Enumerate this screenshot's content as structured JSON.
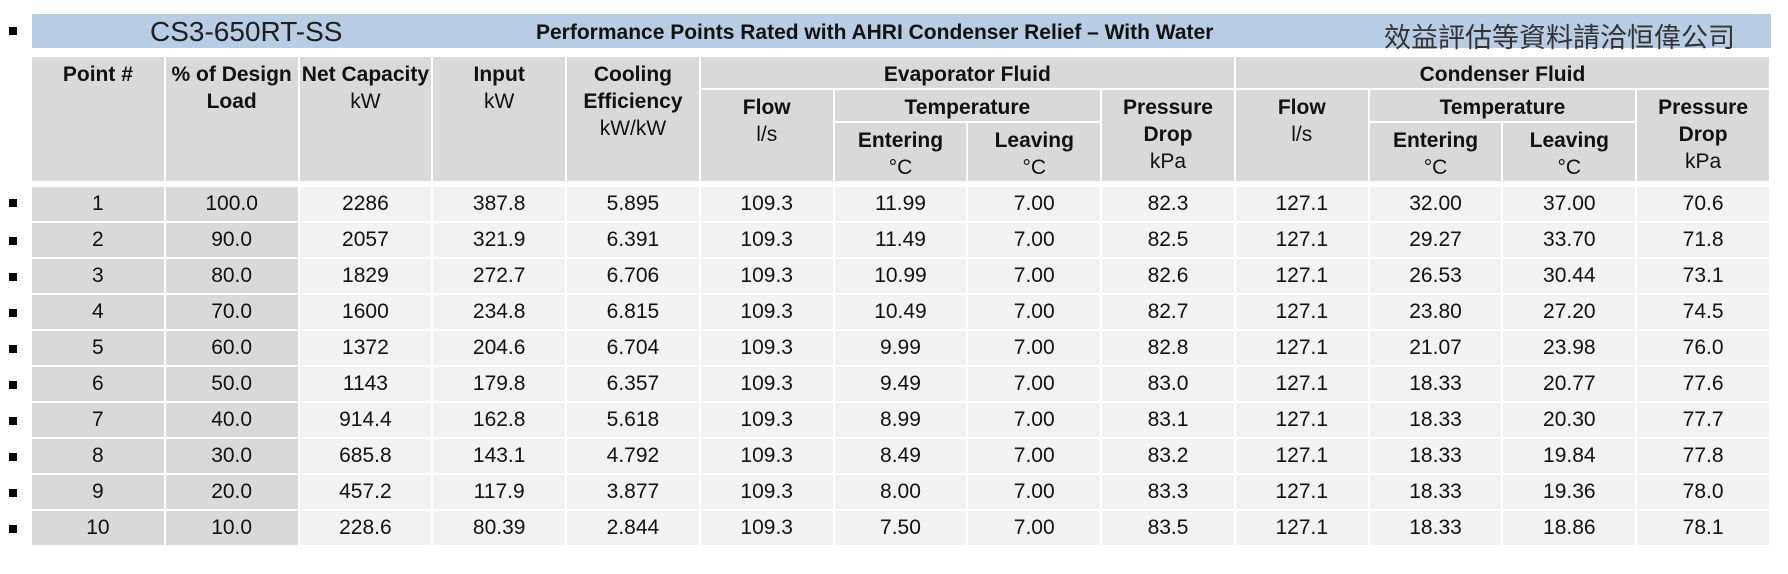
{
  "title": {
    "model": "CS3-650RT-SS",
    "heading": "Performance Points Rated with AHRI Condenser Relief – With Water",
    "note": "效益評估等資料請洽恒偉公司"
  },
  "header": {
    "columns": [
      {
        "name": "Point #"
      },
      {
        "name": "% of Design Load"
      },
      {
        "name": "Net Capacity",
        "unit": "kW"
      },
      {
        "name": "Input",
        "unit": "kW"
      },
      {
        "name": "Cooling Efficiency",
        "unit": "kW/kW"
      }
    ],
    "groups": [
      {
        "name": "Evaporator Fluid",
        "flow": {
          "name": "Flow",
          "unit": "l/s"
        },
        "temperature": "Temperature",
        "entering": {
          "name": "Entering",
          "unit": "°C"
        },
        "leaving": {
          "name": "Leaving",
          "unit": "°C"
        },
        "pressure_drop": {
          "name": "Pressure Drop",
          "unit": "kPa"
        }
      },
      {
        "name": "Condenser Fluid",
        "flow": {
          "name": "Flow",
          "unit": "l/s"
        },
        "temperature": "Temperature",
        "entering": {
          "name": "Entering",
          "unit": "°C"
        },
        "leaving": {
          "name": "Leaving",
          "unit": "°C"
        },
        "pressure_drop": {
          "name": "Pressure Drop",
          "unit": "kPa"
        }
      }
    ]
  },
  "table": {
    "rows": [
      [
        "1",
        "100.0",
        "2286",
        "387.8",
        "5.895",
        "109.3",
        "11.99",
        "7.00",
        "82.3",
        "127.1",
        "32.00",
        "37.00",
        "70.6"
      ],
      [
        "2",
        "90.0",
        "2057",
        "321.9",
        "6.391",
        "109.3",
        "11.49",
        "7.00",
        "82.5",
        "127.1",
        "29.27",
        "33.70",
        "71.8"
      ],
      [
        "3",
        "80.0",
        "1829",
        "272.7",
        "6.706",
        "109.3",
        "10.99",
        "7.00",
        "82.6",
        "127.1",
        "26.53",
        "30.44",
        "73.1"
      ],
      [
        "4",
        "70.0",
        "1600",
        "234.8",
        "6.815",
        "109.3",
        "10.49",
        "7.00",
        "82.7",
        "127.1",
        "23.80",
        "27.20",
        "74.5"
      ],
      [
        "5",
        "60.0",
        "1372",
        "204.6",
        "6.704",
        "109.3",
        "9.99",
        "7.00",
        "82.8",
        "127.1",
        "21.07",
        "23.98",
        "76.0"
      ],
      [
        "6",
        "50.0",
        "1143",
        "179.8",
        "6.357",
        "109.3",
        "9.49",
        "7.00",
        "83.0",
        "127.1",
        "18.33",
        "20.77",
        "77.6"
      ],
      [
        "7",
        "40.0",
        "914.4",
        "162.8",
        "5.618",
        "109.3",
        "8.99",
        "7.00",
        "83.1",
        "127.1",
        "18.33",
        "20.30",
        "77.7"
      ],
      [
        "8",
        "30.0",
        "685.8",
        "143.1",
        "4.792",
        "109.3",
        "8.49",
        "7.00",
        "83.2",
        "127.1",
        "18.33",
        "19.84",
        "77.8"
      ],
      [
        "9",
        "20.0",
        "457.2",
        "117.9",
        "3.877",
        "109.3",
        "8.00",
        "7.00",
        "83.3",
        "127.1",
        "18.33",
        "19.36",
        "78.0"
      ],
      [
        "10",
        "10.0",
        "228.6",
        "80.39",
        "2.844",
        "109.3",
        "7.50",
        "7.00",
        "83.5",
        "127.1",
        "18.33",
        "18.86",
        "78.1"
      ]
    ]
  }
}
